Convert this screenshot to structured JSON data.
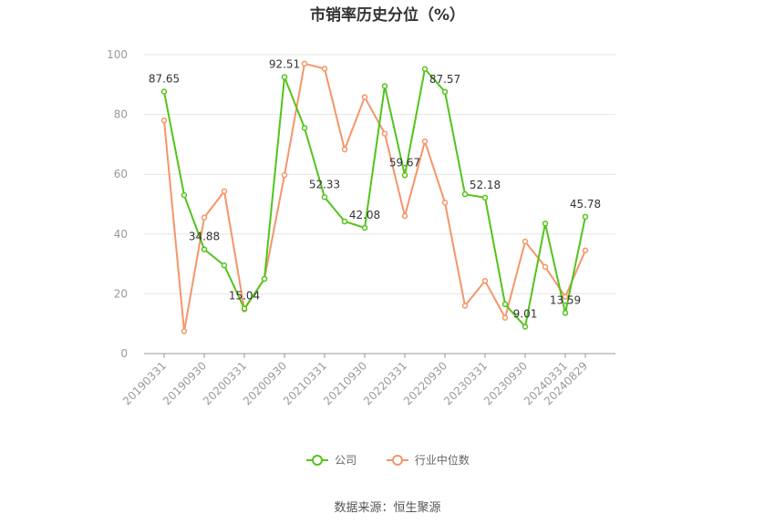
{
  "chart_data": {
    "type": "line",
    "title": "市销率历史分位（%）",
    "ylim": [
      0,
      100
    ],
    "yticks": [
      0,
      20,
      40,
      60,
      80,
      100
    ],
    "x_tick_labels": [
      "20190331",
      "20190930",
      "20200331",
      "20200930",
      "20210331",
      "20210930",
      "20220331",
      "20220930",
      "20230331",
      "20230930",
      "20240331",
      "20240829"
    ],
    "x": [
      "20190331",
      "20190630",
      "20190930",
      "20191231",
      "20200331",
      "20200630",
      "20200930",
      "20201231",
      "20210331",
      "20210630",
      "20210930",
      "20211231",
      "20220331",
      "20220630",
      "20220930",
      "20221231",
      "20230331",
      "20230630",
      "20230930",
      "20231231",
      "20240331",
      "20240829"
    ],
    "series": [
      {
        "name": "公司",
        "color": "#52c41a",
        "values": [
          87.65,
          53.0,
          34.88,
          29.5,
          15.04,
          25.0,
          92.51,
          75.5,
          52.33,
          44.2,
          42.08,
          89.5,
          59.67,
          95.2,
          87.57,
          53.3,
          52.18,
          16.5,
          9.01,
          43.5,
          13.59,
          45.78
        ],
        "labels": [
          "87.65",
          "",
          "34.88",
          "",
          "15.04",
          "",
          "92.51",
          "",
          "52.33",
          "",
          "42.08",
          "",
          "59.67",
          "",
          "87.57",
          "",
          "52.18",
          "",
          "9.01",
          "",
          "13.59",
          "45.78"
        ]
      },
      {
        "name": "行业中位数",
        "color": "#f5956a",
        "values": [
          78.0,
          7.5,
          45.5,
          54.3,
          14.8,
          25.0,
          59.7,
          97.0,
          95.3,
          68.3,
          85.8,
          73.6,
          46.0,
          71.0,
          50.5,
          16.0,
          24.3,
          12.0,
          37.5,
          29.0,
          19.0,
          34.5
        ]
      }
    ],
    "legend": {
      "position": "bottom"
    },
    "source": "数据来源：恒生聚源"
  }
}
